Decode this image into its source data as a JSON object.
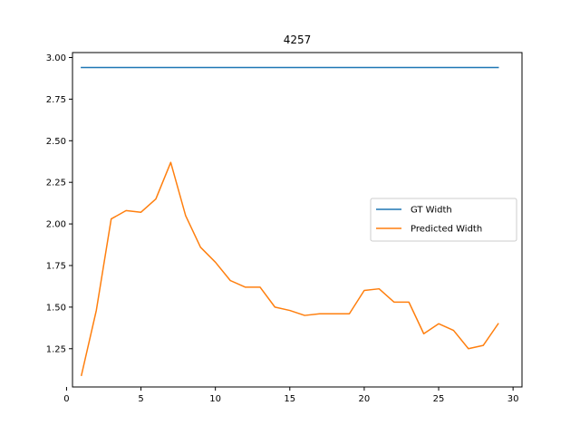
{
  "chart_data": {
    "type": "line",
    "title": "4257",
    "xlabel": "",
    "ylabel": "",
    "xlim": [
      0.4,
      30.6
    ],
    "ylim": [
      1.02,
      3.03
    ],
    "xticks": [
      0,
      5,
      10,
      15,
      20,
      25,
      30
    ],
    "yticks": [
      1.25,
      1.5,
      1.75,
      2.0,
      2.25,
      2.5,
      2.75,
      3.0
    ],
    "ytick_labels": [
      "1.25",
      "1.50",
      "1.75",
      "2.00",
      "2.25",
      "2.50",
      "2.75",
      "3.00"
    ],
    "grid": false,
    "legend_position": "center-right",
    "series": [
      {
        "name": "GT Width",
        "color": "#1f77b4",
        "x": [
          1,
          29
        ],
        "y": [
          2.94,
          2.94
        ]
      },
      {
        "name": "Predicted Width",
        "color": "#ff7f0e",
        "x": [
          1,
          2,
          3,
          4,
          5,
          6,
          7,
          8,
          9,
          10,
          11,
          12,
          13,
          14,
          15,
          16,
          17,
          18,
          19,
          20,
          21,
          22,
          23,
          24,
          25,
          26,
          27,
          28,
          29
        ],
        "y": [
          1.09,
          1.48,
          2.03,
          2.08,
          2.07,
          2.15,
          2.37,
          2.05,
          1.86,
          1.77,
          1.66,
          1.62,
          1.62,
          1.5,
          1.48,
          1.45,
          1.46,
          1.46,
          1.46,
          1.6,
          1.61,
          1.53,
          1.53,
          1.34,
          1.4,
          1.36,
          1.25,
          1.27,
          1.4
        ]
      }
    ]
  }
}
